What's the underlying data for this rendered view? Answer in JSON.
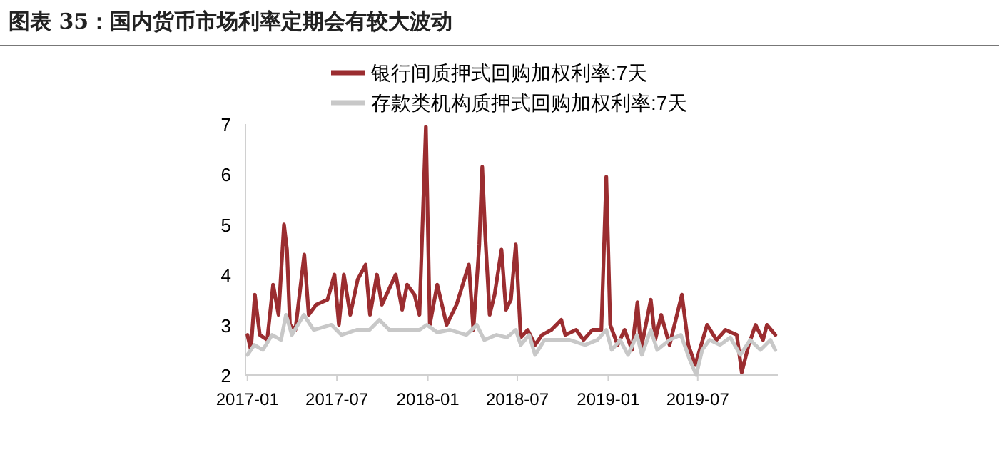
{
  "chart_data": {
    "type": "line",
    "title": "图表 35：国内货币市场利率定期会有较大波动",
    "xlim": [
      "2016-12-28",
      "2019-12-10"
    ],
    "xticks": [
      "2017-01",
      "2017-07",
      "2018-01",
      "2018-07",
      "2019-01",
      "2019-07"
    ],
    "ylim": [
      2,
      7
    ],
    "yticks": [
      2,
      3,
      4,
      5,
      6,
      7
    ],
    "legend": "top",
    "series": [
      {
        "name": "银行间质押式回购加权利率:7天",
        "color": "#9b2d30",
        "x": [
          "2017-01-01",
          "2017-01-08",
          "2017-01-16",
          "2017-01-26",
          "2017-02-10",
          "2017-02-22",
          "2017-03-05",
          "2017-03-16",
          "2017-03-22",
          "2017-03-28",
          "2017-04-08",
          "2017-04-26",
          "2017-05-05",
          "2017-05-20",
          "2017-06-12",
          "2017-06-26",
          "2017-07-05",
          "2017-07-15",
          "2017-07-28",
          "2017-08-12",
          "2017-08-28",
          "2017-09-06",
          "2017-09-20",
          "2017-09-30",
          "2017-10-28",
          "2017-11-10",
          "2017-11-20",
          "2017-12-05",
          "2017-12-15",
          "2017-12-28",
          "2018-01-05",
          "2018-01-20",
          "2018-02-08",
          "2018-02-28",
          "2018-03-25",
          "2018-04-03",
          "2018-04-15",
          "2018-04-21",
          "2018-04-27",
          "2018-05-06",
          "2018-05-16",
          "2018-05-30",
          "2018-06-08",
          "2018-06-18",
          "2018-06-28",
          "2018-07-08",
          "2018-07-22",
          "2018-08-06",
          "2018-08-20",
          "2018-09-08",
          "2018-09-28",
          "2018-10-06",
          "2018-10-28",
          "2018-11-12",
          "2018-11-30",
          "2018-12-18",
          "2018-12-28",
          "2019-01-05",
          "2019-01-20",
          "2019-02-03",
          "2019-02-18",
          "2019-03-01",
          "2019-03-08",
          "2019-03-28",
          "2019-04-06",
          "2019-04-18",
          "2019-05-05",
          "2019-05-30",
          "2019-06-12",
          "2019-06-26",
          "2019-07-08",
          "2019-07-20",
          "2019-08-08",
          "2019-08-26",
          "2019-09-18",
          "2019-09-28",
          "2019-10-12",
          "2019-10-26",
          "2019-11-10",
          "2019-11-18",
          "2019-12-05"
        ],
        "values": [
          2.8,
          2.5,
          3.6,
          2.8,
          2.7,
          3.8,
          3.2,
          5.0,
          4.5,
          3.0,
          2.9,
          4.4,
          3.2,
          3.4,
          3.5,
          4.0,
          3.0,
          4.0,
          3.2,
          3.9,
          4.2,
          3.2,
          4.0,
          3.4,
          4.0,
          3.3,
          3.8,
          3.6,
          3.2,
          6.95,
          3.0,
          3.8,
          3.0,
          3.4,
          4.2,
          2.9,
          4.6,
          6.15,
          4.8,
          3.2,
          3.6,
          4.5,
          3.3,
          3.5,
          4.6,
          2.75,
          2.9,
          2.6,
          2.8,
          2.9,
          3.1,
          2.8,
          2.9,
          2.7,
          2.9,
          2.9,
          5.95,
          3.0,
          2.6,
          2.9,
          2.5,
          3.45,
          2.5,
          3.5,
          2.7,
          3.2,
          2.6,
          3.6,
          2.6,
          2.2,
          2.6,
          3.0,
          2.7,
          2.9,
          2.8,
          2.05,
          2.6,
          3.0,
          2.7,
          3.0,
          2.8
        ]
      },
      {
        "name": "存款类机构质押式回购加权利率:7天",
        "color": "#c8c8c8",
        "x": [
          "2017-01-01",
          "2017-01-15",
          "2017-02-01",
          "2017-02-20",
          "2017-03-10",
          "2017-03-20",
          "2017-04-01",
          "2017-04-25",
          "2017-05-15",
          "2017-06-20",
          "2017-07-10",
          "2017-08-10",
          "2017-09-05",
          "2017-09-25",
          "2017-10-15",
          "2017-11-15",
          "2017-12-15",
          "2017-12-30",
          "2018-01-20",
          "2018-02-15",
          "2018-03-20",
          "2018-04-10",
          "2018-04-25",
          "2018-05-20",
          "2018-06-10",
          "2018-06-28",
          "2018-07-08",
          "2018-07-25",
          "2018-08-06",
          "2018-08-25",
          "2018-09-20",
          "2018-10-15",
          "2018-11-15",
          "2018-12-10",
          "2018-12-28",
          "2019-01-08",
          "2019-01-25",
          "2019-02-10",
          "2019-02-28",
          "2019-03-10",
          "2019-03-28",
          "2019-04-10",
          "2019-05-05",
          "2019-05-28",
          "2019-06-15",
          "2019-06-28",
          "2019-07-10",
          "2019-07-25",
          "2019-08-15",
          "2019-09-05",
          "2019-09-25",
          "2019-10-15",
          "2019-11-05",
          "2019-11-25",
          "2019-12-05"
        ],
        "values": [
          2.4,
          2.6,
          2.5,
          2.8,
          2.7,
          3.2,
          2.8,
          3.2,
          2.9,
          3.0,
          2.8,
          2.9,
          2.9,
          3.1,
          2.9,
          2.9,
          2.9,
          3.0,
          2.85,
          2.9,
          2.8,
          3.0,
          2.7,
          2.8,
          2.75,
          2.9,
          2.6,
          2.8,
          2.4,
          2.7,
          2.7,
          2.7,
          2.6,
          2.7,
          2.9,
          2.5,
          2.7,
          2.4,
          2.8,
          2.4,
          2.9,
          2.5,
          2.7,
          2.8,
          2.3,
          2.0,
          2.5,
          2.7,
          2.6,
          2.75,
          2.4,
          2.7,
          2.5,
          2.7,
          2.5
        ]
      }
    ]
  }
}
